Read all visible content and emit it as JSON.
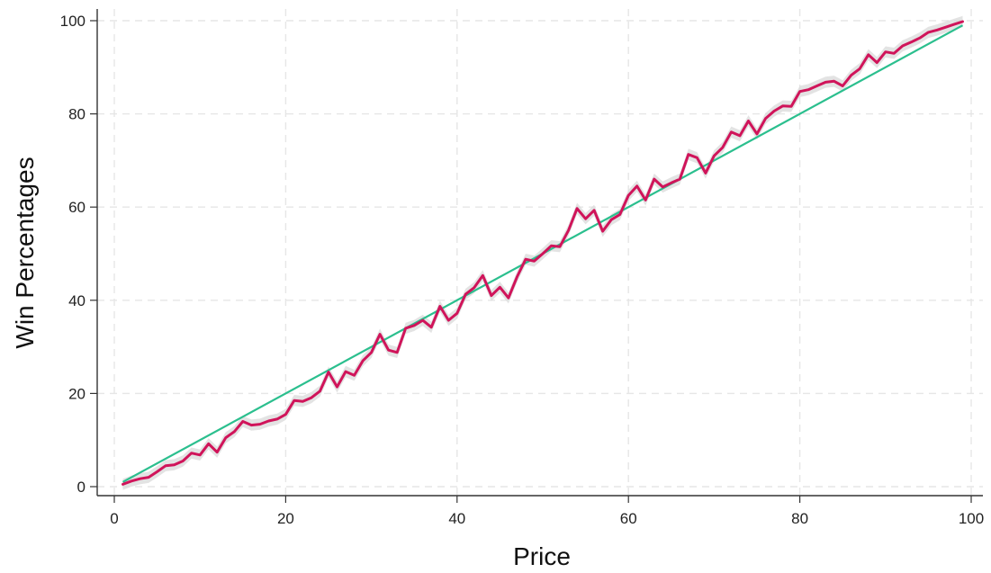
{
  "chart_data": {
    "type": "line",
    "title": "",
    "xlabel": "Price",
    "ylabel": "Win Percentages",
    "xlim": [
      0,
      100
    ],
    "ylim": [
      0,
      100
    ],
    "xticks": [
      0,
      20,
      40,
      60,
      80,
      100
    ],
    "yticks": [
      0,
      20,
      40,
      60,
      80,
      100
    ],
    "grid": true,
    "legend": "none",
    "series": [
      {
        "color": "#d0145a",
        "band_color": "#d9d9d9",
        "band_halfwidth": 1.2,
        "x": [
          1,
          2,
          3,
          4,
          5,
          6,
          7,
          8,
          9,
          10,
          11,
          12,
          13,
          14,
          15,
          16,
          17,
          18,
          19,
          20,
          21,
          22,
          23,
          24,
          25,
          26,
          27,
          28,
          29,
          30,
          31,
          32,
          33,
          34,
          35,
          36,
          37,
          38,
          39,
          40,
          41,
          42,
          43,
          44,
          45,
          46,
          47,
          48,
          49,
          50,
          51,
          52,
          53,
          54,
          55,
          56,
          57,
          58,
          59,
          60,
          61,
          62,
          63,
          64,
          65,
          66,
          67,
          68,
          69,
          70,
          71,
          72,
          73,
          74,
          75,
          76,
          77,
          78,
          79,
          80,
          81,
          82,
          83,
          84,
          85,
          86,
          87,
          88,
          89,
          90,
          91,
          92,
          93,
          94,
          95,
          96,
          97,
          98,
          99
        ],
        "values": [
          0.5,
          1.2,
          1.7,
          2.0,
          3.2,
          4.5,
          4.7,
          5.5,
          7.2,
          6.8,
          9.2,
          7.4,
          10.5,
          11.8,
          14.0,
          13.2,
          13.4,
          14.1,
          14.5,
          15.5,
          18.5,
          18.3,
          19.1,
          20.5,
          24.6,
          21.4,
          24.7,
          23.9,
          27.0,
          28.8,
          32.7,
          29.3,
          28.8,
          34.0,
          34.6,
          35.7,
          34.2,
          38.7,
          35.7,
          37.2,
          41.3,
          42.7,
          45.3,
          41.0,
          42.8,
          40.5,
          45.0,
          48.8,
          48.4,
          50.0,
          51.7,
          51.5,
          55.0,
          59.7,
          57.5,
          59.3,
          54.8,
          57.3,
          58.4,
          62.5,
          64.5,
          61.5,
          66.0,
          64.3,
          65.2,
          66.0,
          71.3,
          70.6,
          67.3,
          71.0,
          72.8,
          76.1,
          75.3,
          78.5,
          75.7,
          79.0,
          80.6,
          81.7,
          81.6,
          84.8,
          85.2,
          86.0,
          86.8,
          87.0,
          86.0,
          88.3,
          89.7,
          92.7,
          91.0,
          93.3,
          93.0,
          94.6,
          95.4,
          96.3,
          97.5,
          98.0,
          98.6,
          99.2,
          99.8
        ]
      },
      {
        "color": "#2bbf8e",
        "x": [
          1,
          99
        ],
        "values": [
          1,
          99
        ]
      }
    ]
  }
}
